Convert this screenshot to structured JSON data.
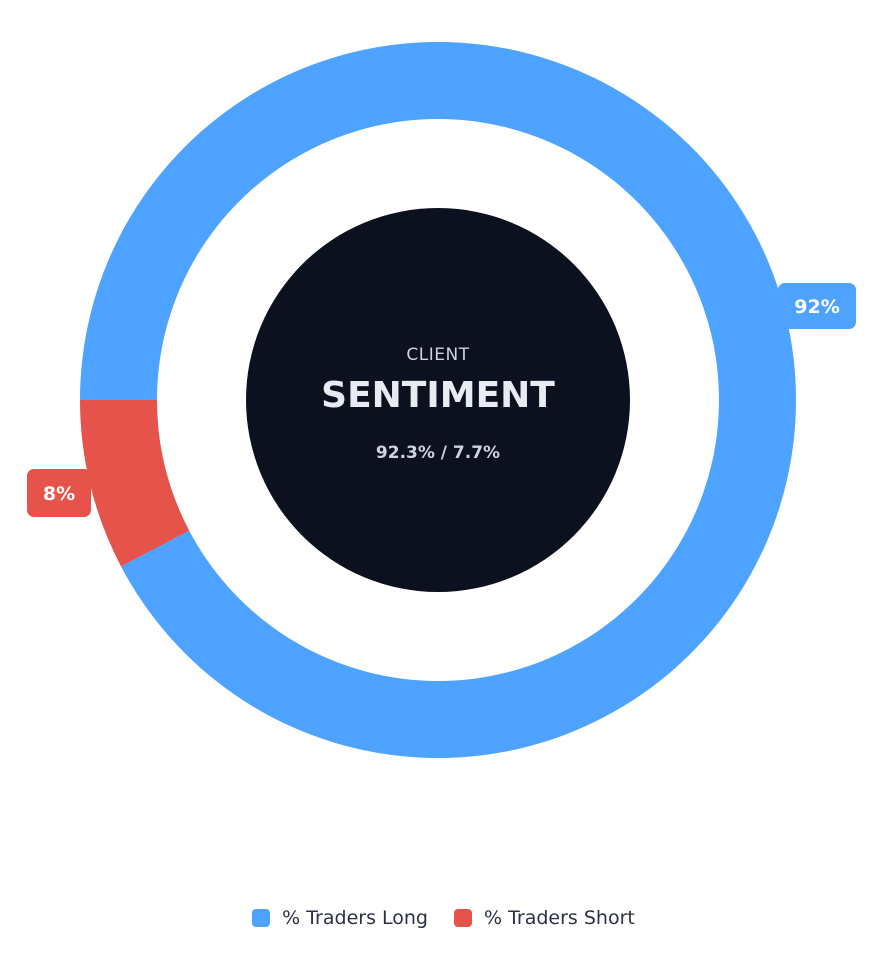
{
  "chart_data": {
    "type": "pie",
    "variant": "donut",
    "title": "",
    "center": {
      "label_small": "CLIENT",
      "label_big": "SENTIMENT",
      "label_values": "92.3% / 7.7%"
    },
    "series": [
      {
        "name": "% Traders Long",
        "value": 92.3,
        "data_label": "92%",
        "color": "#4da3ff"
      },
      {
        "name": "% Traders Short",
        "value": 7.7,
        "data_label": "8%",
        "color": "#e5534b"
      }
    ],
    "legend": {
      "position": "bottom",
      "items": [
        "% Traders Long",
        "% Traders Short"
      ]
    }
  },
  "colors": {
    "center_fill": "#0c1120",
    "long": "#4da3ff",
    "short": "#e5534b"
  }
}
